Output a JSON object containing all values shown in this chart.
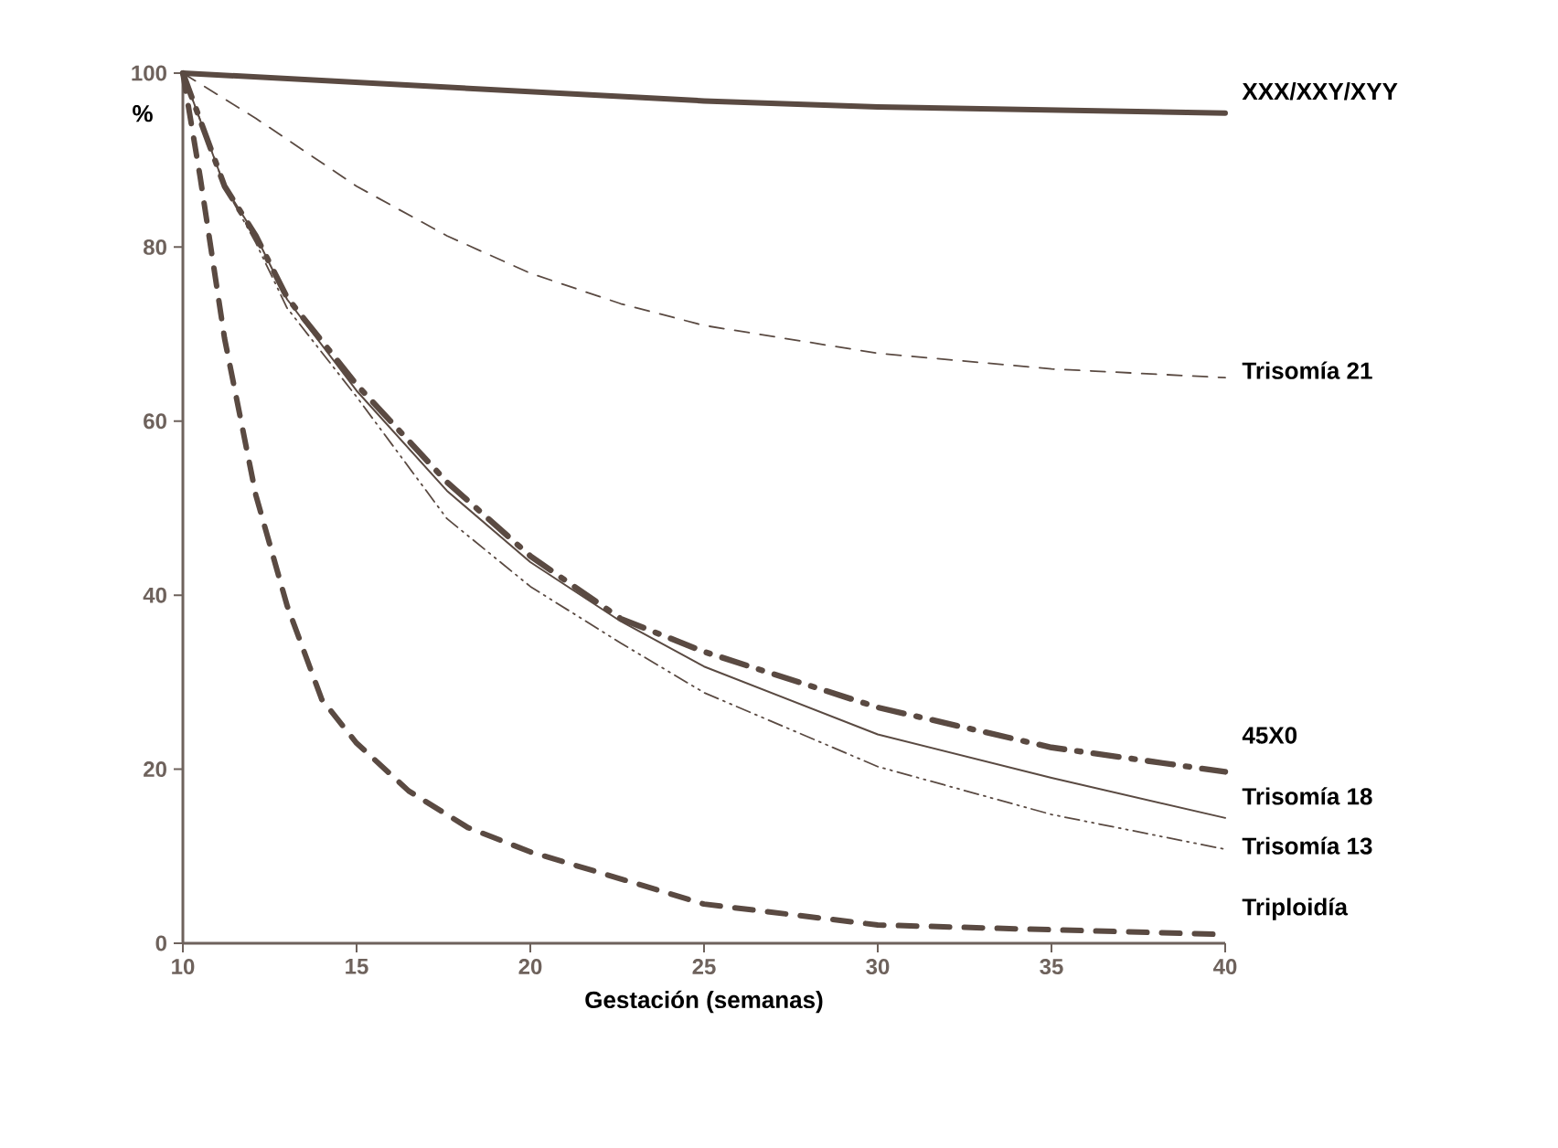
{
  "chart_data": {
    "type": "line",
    "xlabel": "Gestación (semanas)",
    "ylabel": "%",
    "xlim": [
      10,
      40
    ],
    "xticks": [
      10,
      15,
      20,
      25,
      30,
      35,
      40
    ],
    "ylim": [
      0,
      100
    ],
    "yticks": [
      0,
      20,
      40,
      60,
      80,
      100
    ],
    "grid": false,
    "marker": "none",
    "series": [
      {
        "name": "XXX/XXY/XYY",
        "color": "#5a4a42",
        "line_style": "solid",
        "x": [
          10,
          25,
          30,
          40
        ],
        "values": [
          100,
          96.8,
          96.1,
          95.4
        ]
      },
      {
        "name": "Trisomía 21",
        "color": "#5a4a42",
        "line_style": "dashed",
        "x": [
          10,
          12.1,
          15,
          17.6,
          20,
          22.6,
          25,
          30,
          35,
          40
        ],
        "values": [
          100,
          94.8,
          87,
          81.3,
          77,
          73.5,
          71,
          67.8,
          66,
          65
        ]
      },
      {
        "name": "45X0",
        "color": "#5a4a42",
        "line_style": "dashed",
        "x": [
          10,
          11.2,
          12.1,
          13,
          15,
          17.6,
          20,
          22.6,
          25,
          30,
          35,
          40
        ],
        "values": [
          100,
          87,
          81.3,
          74.2,
          64.2,
          53,
          44.5,
          37.3,
          33.5,
          27.1,
          22.5,
          19.7
        ]
      },
      {
        "name": "Trisomía 18",
        "color": "#5a4a42",
        "line_style": "solid",
        "x": [
          10,
          11.2,
          12.1,
          13,
          15,
          17.6,
          20,
          22.6,
          25,
          30,
          35,
          40
        ],
        "values": [
          100,
          87,
          81.3,
          74,
          63.5,
          52,
          43.8,
          37,
          31.8,
          24,
          19,
          14.4
        ]
      },
      {
        "name": "Trisomía 13",
        "color": "#5a4a42",
        "line_style": "dotted",
        "x": [
          10,
          11.2,
          12.1,
          13,
          15,
          17.6,
          20,
          22.6,
          25,
          30,
          35,
          40
        ],
        "values": [
          100,
          87,
          80.5,
          73,
          62.8,
          48.8,
          41,
          34.5,
          28.8,
          20.3,
          14.8,
          10.8
        ]
      },
      {
        "name": "Triploidía",
        "color": "#5a4a42",
        "line_style": "dashed",
        "x": [
          10,
          10.5,
          11.2,
          12.1,
          13,
          14,
          15,
          16.5,
          18.2,
          20,
          22.6,
          25,
          30,
          40
        ],
        "values": [
          100,
          88,
          69.5,
          51.5,
          38.8,
          28,
          23,
          17.5,
          13.3,
          10.5,
          7.4,
          4.5,
          2.1,
          1
        ]
      }
    ]
  }
}
